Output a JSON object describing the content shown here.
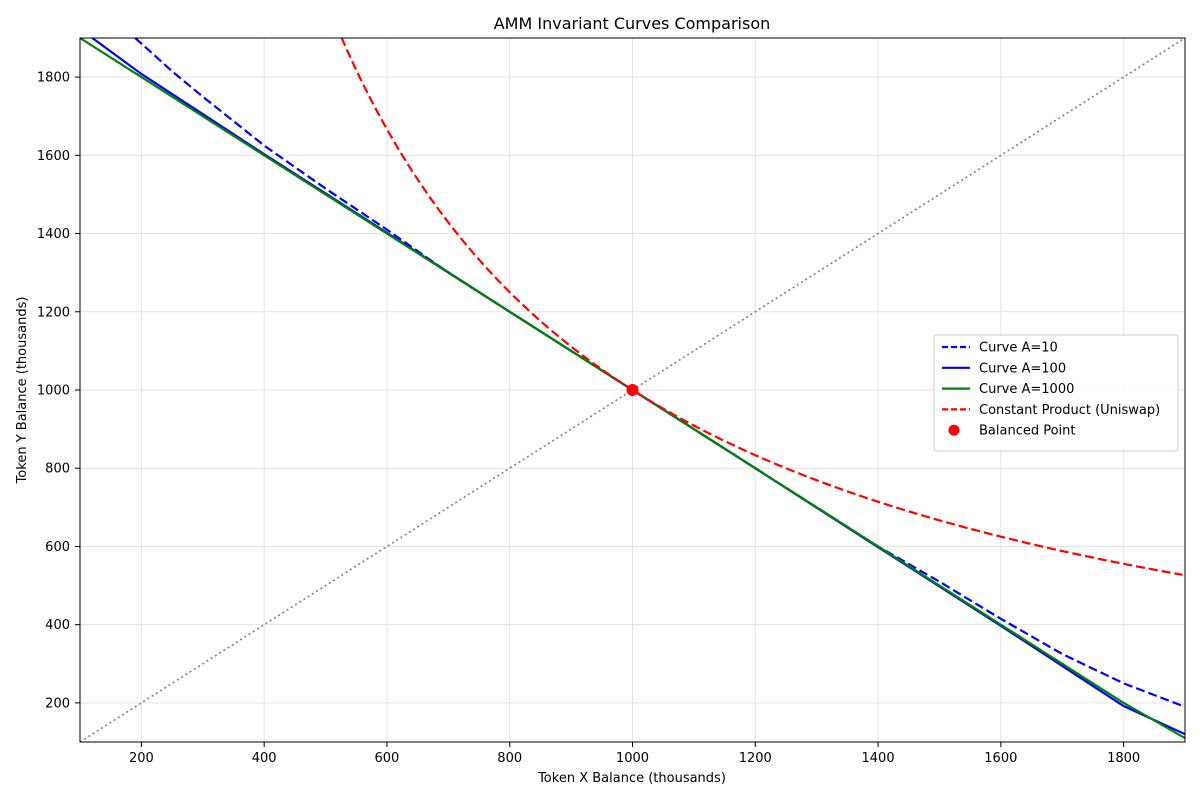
{
  "chart_data": {
    "type": "line",
    "title": "AMM Invariant Curves Comparison",
    "xlabel": "Token X Balance (thousands)",
    "ylabel": "Token Y Balance (thousands)",
    "xlim": [
      100,
      1900
    ],
    "ylim": [
      100,
      1900
    ],
    "xticks": [
      200,
      400,
      600,
      800,
      1000,
      1200,
      1400,
      1600,
      1800
    ],
    "yticks": [
      200,
      400,
      600,
      800,
      1000,
      1200,
      1400,
      1600,
      1800
    ],
    "grid": true,
    "legend_position": "center-right",
    "series": [
      {
        "name": "Curve A=10",
        "color": "#0000ff",
        "dash": "dashed",
        "x": [
          190,
          250,
          300,
          400,
          500,
          600,
          700,
          800,
          900,
          1000,
          1100,
          1200,
          1300,
          1400,
          1500,
          1600,
          1700,
          1800,
          1900
        ],
        "y": [
          1900,
          1815,
          1750,
          1625,
          1515,
          1410,
          1300,
          1200,
          1100,
          1000,
          900,
          800,
          700,
          600,
          510,
          415,
          325,
          250,
          190
        ]
      },
      {
        "name": "Curve A=100",
        "color": "#0000ff",
        "dash": "solid",
        "x": [
          120,
          200,
          400,
          600,
          800,
          1000,
          1200,
          1400,
          1600,
          1800,
          1900
        ],
        "y": [
          1900,
          1808,
          1603,
          1402,
          1200,
          1000,
          800,
          598,
          397,
          192,
          120
        ]
      },
      {
        "name": "Curve A=1000",
        "color": "#008000",
        "dash": "solid",
        "x": [
          100,
          200,
          400,
          600,
          800,
          1000,
          1200,
          1400,
          1600,
          1800,
          1900
        ],
        "y": [
          1900,
          1800,
          1600,
          1400,
          1200,
          1000,
          800,
          600,
          400,
          200,
          110
        ]
      },
      {
        "name": "Constant Product (Uniswap)",
        "color": "#ff0000",
        "dash": "dashed",
        "function": "x*y=1000000",
        "x": [
          526,
          600,
          700,
          800,
          900,
          1000,
          1100,
          1200,
          1300,
          1400,
          1500,
          1600,
          1700,
          1800,
          1900
        ],
        "y": [
          1900,
          1667,
          1429,
          1250,
          1111,
          1000,
          909,
          833,
          769,
          714,
          667,
          625,
          588,
          556,
          526
        ]
      },
      {
        "name": "",
        "color": "#808080",
        "dash": "dotted",
        "x": [
          100,
          1900
        ],
        "y": [
          100,
          1900
        ]
      }
    ],
    "points": [
      {
        "name": "Balanced Point",
        "color": "#ff0000",
        "x": 1000,
        "y": 1000
      }
    ]
  }
}
